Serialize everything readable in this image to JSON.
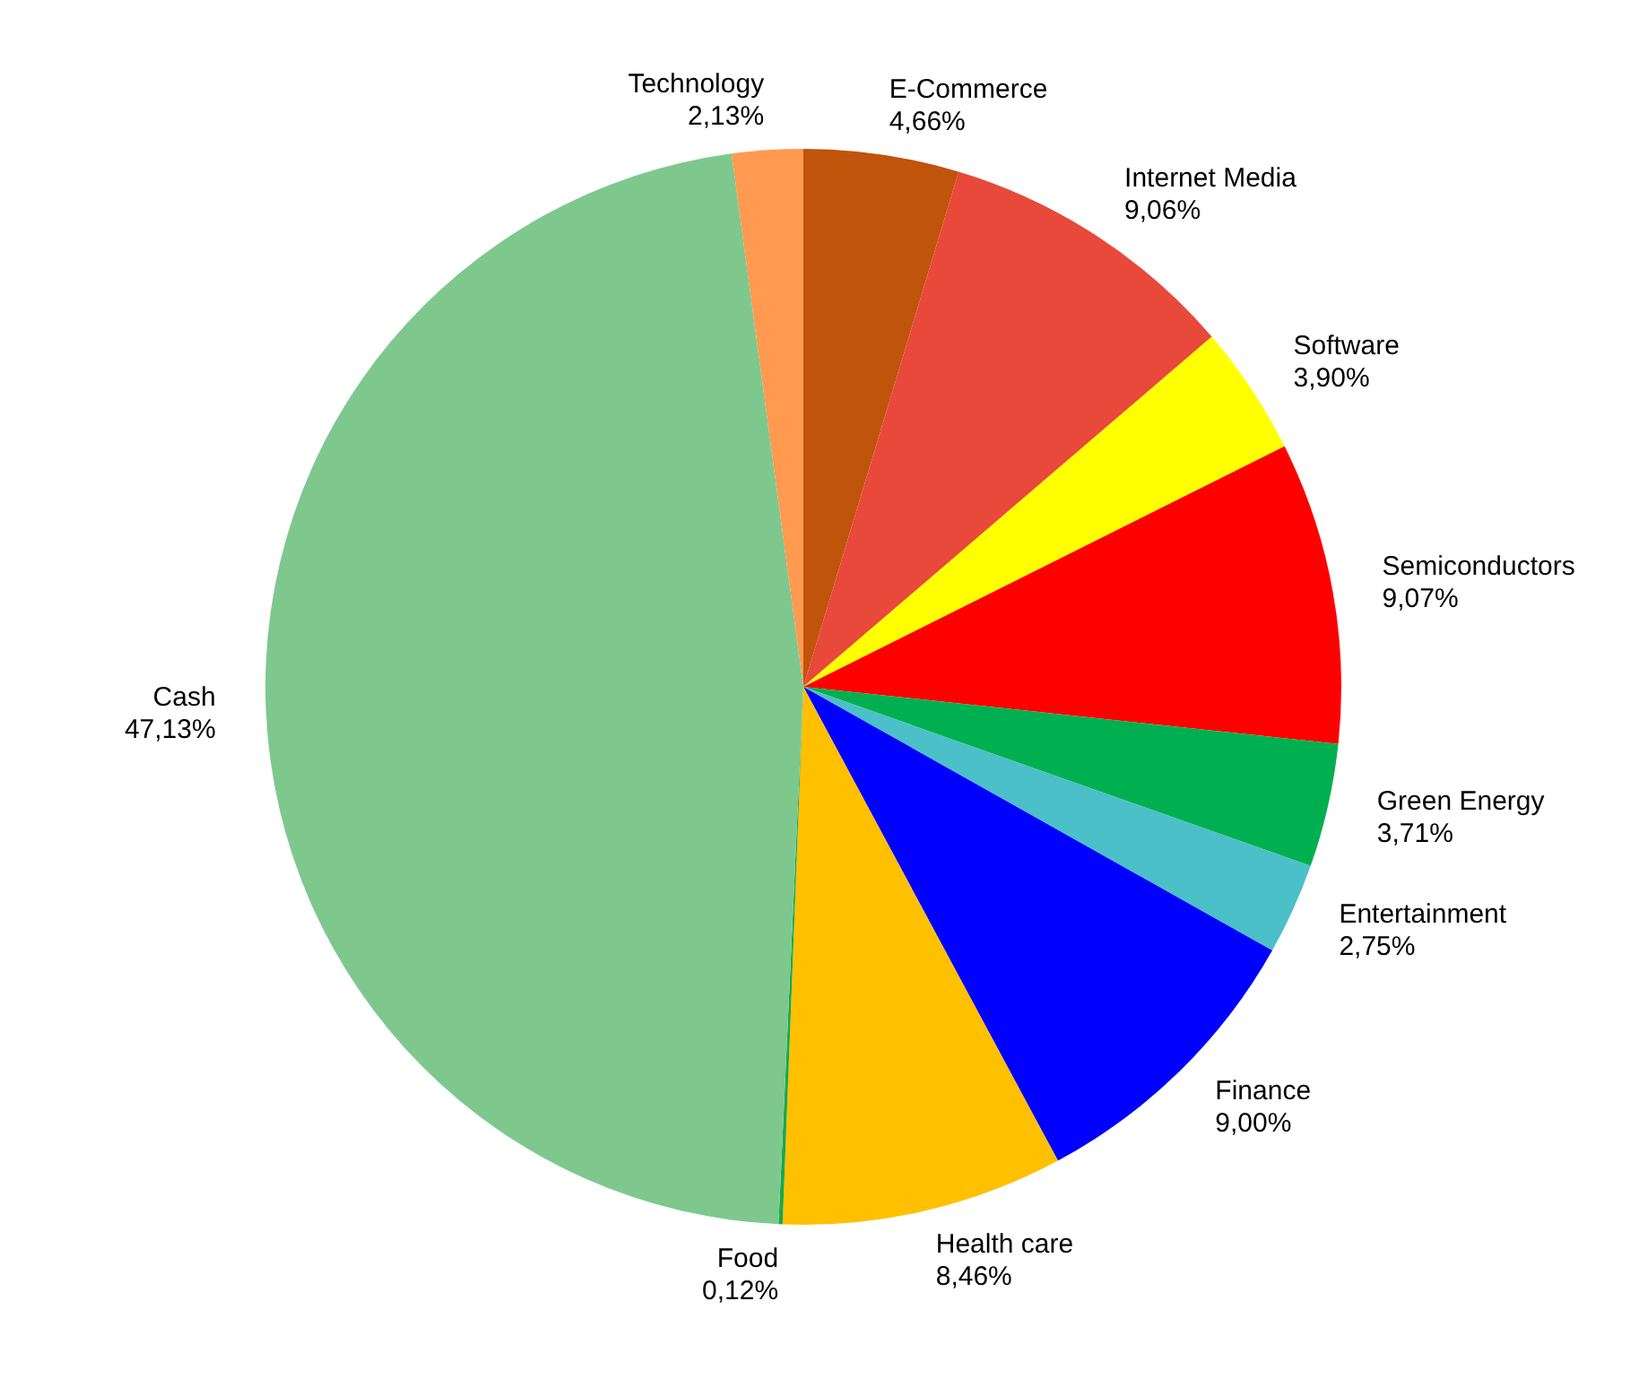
{
  "chart_data": {
    "type": "pie",
    "categories": [
      "E-Commerce",
      "Internet Media",
      "Software",
      "Semiconductors",
      "Green Energy",
      "Entertainment",
      "Finance",
      "Health care",
      "Food",
      "Cash",
      "Technology"
    ],
    "values": [
      4.66,
      9.06,
      3.9,
      9.07,
      3.71,
      2.75,
      9.0,
      8.46,
      0.12,
      47.13,
      2.13
    ],
    "value_labels": [
      "4,66%",
      "9,06%",
      "3,90%",
      "9,07%",
      "3,71%",
      "2,75%",
      "9,00%",
      "8,46%",
      "0,12%",
      "47,13%",
      "2,13%"
    ],
    "colors": [
      "#c0540a",
      "#e8493a",
      "#ffff00",
      "#ff0000",
      "#00b050",
      "#4bc0c8",
      "#0000ff",
      "#ffc000",
      "#1aa84a",
      "#7ec88e",
      "#ff9a50"
    ],
    "legend": false
  }
}
